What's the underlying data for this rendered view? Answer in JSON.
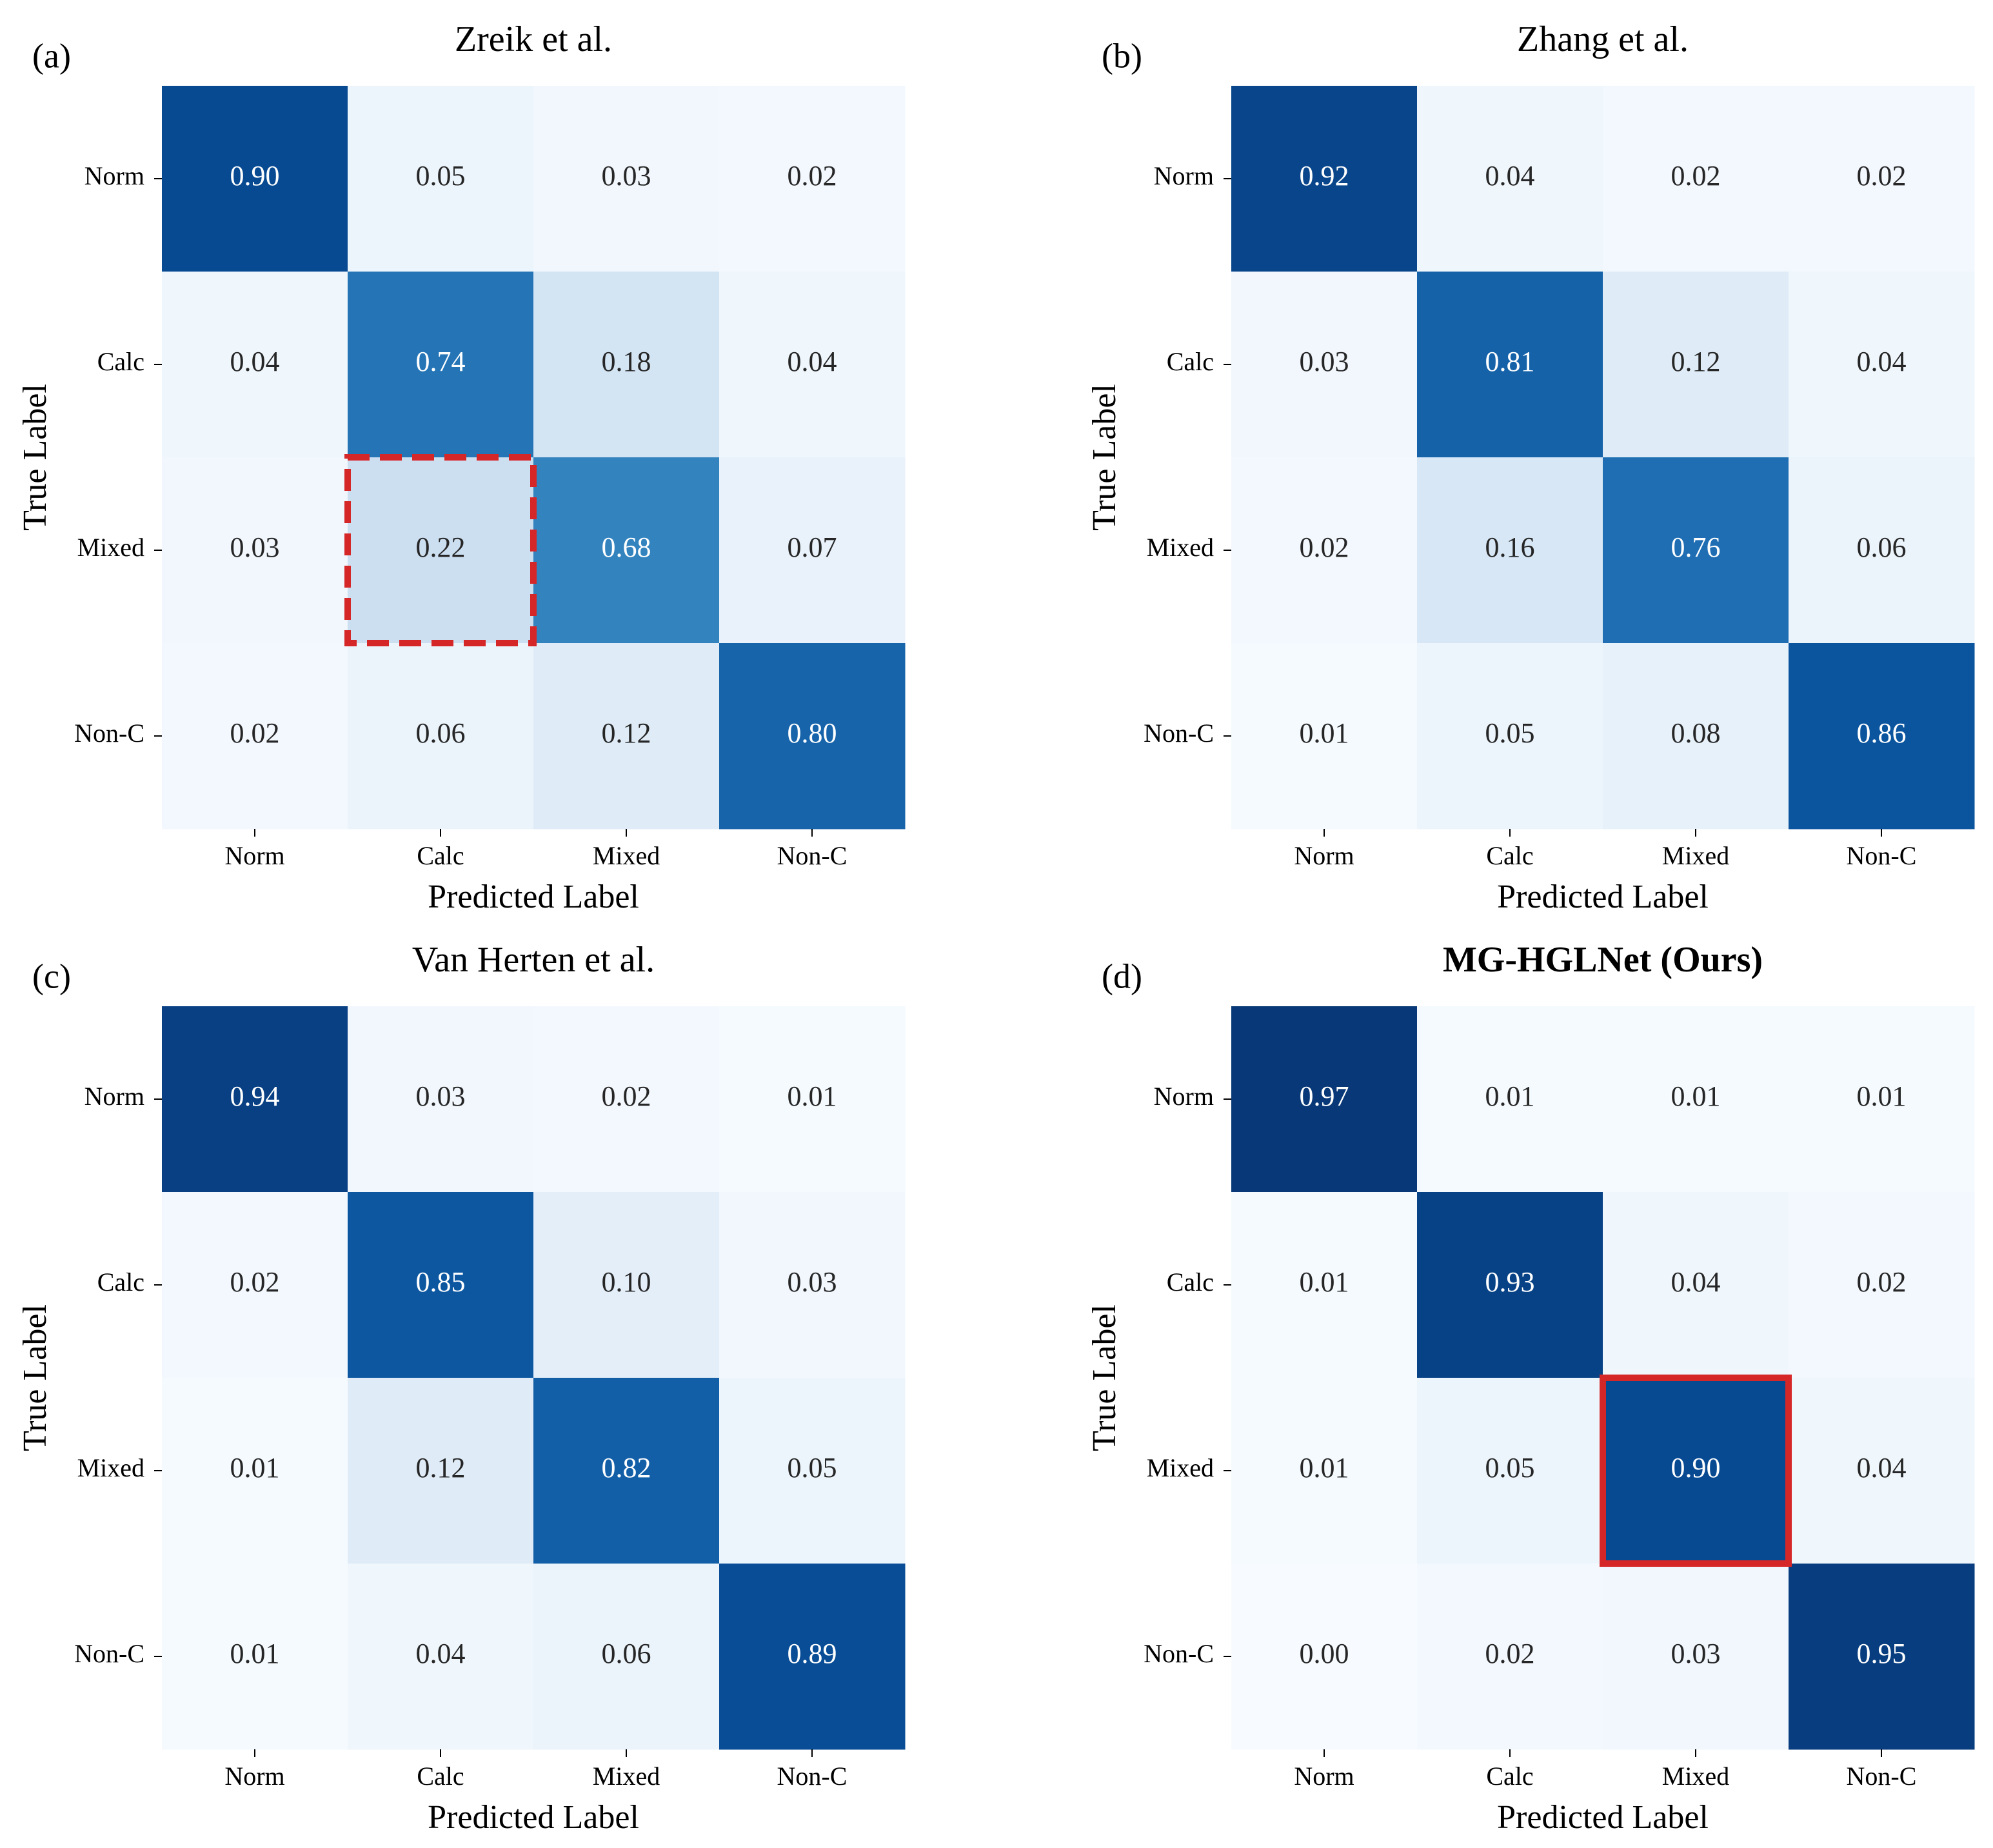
{
  "chart_data": [
    {
      "type": "heatmap",
      "panel": "(a)",
      "title": "Zreik et al.",
      "x_label": "Predicted Label",
      "y_label": "True Label",
      "x_categories": [
        "Norm",
        "Calc",
        "Mixed",
        "Non-C"
      ],
      "y_categories": [
        "Norm",
        "Calc",
        "Mixed",
        "Non-C"
      ],
      "values": [
        [
          0.9,
          0.05,
          0.03,
          0.02
        ],
        [
          0.04,
          0.74,
          0.18,
          0.04
        ],
        [
          0.03,
          0.22,
          0.68,
          0.07
        ],
        [
          0.02,
          0.06,
          0.12,
          0.8
        ]
      ],
      "value_labels": [
        [
          "0.90",
          "0.05",
          "0.03",
          "0.02"
        ],
        [
          "0.04",
          "0.74",
          "0.18",
          "0.04"
        ],
        [
          "0.03",
          "0.22",
          "0.68",
          "0.07"
        ],
        [
          "0.02",
          "0.06",
          "0.12",
          "0.80"
        ]
      ],
      "colormap": "Blues",
      "vlim": [
        0,
        1
      ],
      "highlight": {
        "row": 2,
        "col": 1,
        "style": "dashed",
        "color": "#d62728"
      }
    },
    {
      "type": "heatmap",
      "panel": "(b)",
      "title": "Zhang et al.",
      "x_label": "Predicted Label",
      "y_label": "True Label",
      "x_categories": [
        "Norm",
        "Calc",
        "Mixed",
        "Non-C"
      ],
      "y_categories": [
        "Norm",
        "Calc",
        "Mixed",
        "Non-C"
      ],
      "values": [
        [
          0.92,
          0.04,
          0.02,
          0.02
        ],
        [
          0.03,
          0.81,
          0.12,
          0.04
        ],
        [
          0.02,
          0.16,
          0.76,
          0.06
        ],
        [
          0.01,
          0.05,
          0.08,
          0.86
        ]
      ],
      "value_labels": [
        [
          "0.92",
          "0.04",
          "0.02",
          "0.02"
        ],
        [
          "0.03",
          "0.81",
          "0.12",
          "0.04"
        ],
        [
          "0.02",
          "0.16",
          "0.76",
          "0.06"
        ],
        [
          "0.01",
          "0.05",
          "0.08",
          "0.86"
        ]
      ],
      "colormap": "Blues",
      "vlim": [
        0,
        1
      ]
    },
    {
      "type": "heatmap",
      "panel": "(c)",
      "title": "Van Herten et al.",
      "x_label": "Predicted Label",
      "y_label": "True Label",
      "x_categories": [
        "Norm",
        "Calc",
        "Mixed",
        "Non-C"
      ],
      "y_categories": [
        "Norm",
        "Calc",
        "Mixed",
        "Non-C"
      ],
      "values": [
        [
          0.94,
          0.03,
          0.02,
          0.01
        ],
        [
          0.02,
          0.85,
          0.1,
          0.03
        ],
        [
          0.01,
          0.12,
          0.82,
          0.05
        ],
        [
          0.01,
          0.04,
          0.06,
          0.89
        ]
      ],
      "value_labels": [
        [
          "0.94",
          "0.03",
          "0.02",
          "0.01"
        ],
        [
          "0.02",
          "0.85",
          "0.10",
          "0.03"
        ],
        [
          "0.01",
          "0.12",
          "0.82",
          "0.05"
        ],
        [
          "0.01",
          "0.04",
          "0.06",
          "0.89"
        ]
      ],
      "colormap": "Blues",
      "vlim": [
        0,
        1
      ]
    },
    {
      "type": "heatmap",
      "panel": "(d)",
      "title": "MG-HGLNet (Ours)",
      "title_weight": "bold",
      "x_label": "Predicted Label",
      "y_label": "True Label",
      "x_categories": [
        "Norm",
        "Calc",
        "Mixed",
        "Non-C"
      ],
      "y_categories": [
        "Norm",
        "Calc",
        "Mixed",
        "Non-C"
      ],
      "values": [
        [
          0.97,
          0.01,
          0.01,
          0.01
        ],
        [
          0.01,
          0.93,
          0.04,
          0.02
        ],
        [
          0.01,
          0.05,
          0.9,
          0.04
        ],
        [
          0.0,
          0.02,
          0.03,
          0.95
        ]
      ],
      "value_labels": [
        [
          "0.97",
          "0.01",
          "0.01",
          "0.01"
        ],
        [
          "0.01",
          "0.93",
          "0.04",
          "0.02"
        ],
        [
          "0.01",
          "0.05",
          "0.90",
          "0.04"
        ],
        [
          "0.00",
          "0.02",
          "0.03",
          "0.95"
        ]
      ],
      "colormap": "Blues",
      "vlim": [
        0,
        1
      ],
      "highlight": {
        "row": 2,
        "col": 2,
        "style": "solid",
        "color": "#d62728"
      }
    }
  ]
}
